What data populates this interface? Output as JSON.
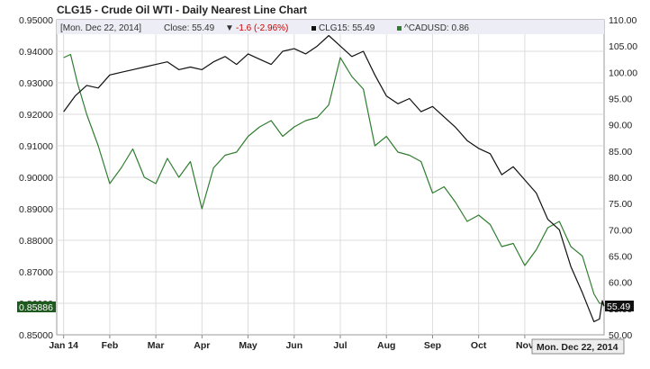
{
  "chart_data": {
    "type": "line",
    "title": "CLG15 - Crude Oil WTI - Daily Nearest Line Chart",
    "info_bar": {
      "date": "[Mon. Dec 22, 2014]",
      "close_label": "Close: 55.49",
      "change": "-1.6 (-2.96%)",
      "change_arrow": "▼",
      "series1_label": "CLG15: 55.49",
      "series2_label": "^CADUSD: 0.86"
    },
    "left_axis": {
      "ylim": [
        0.85,
        0.95
      ],
      "tick_labels": [
        "0.95000",
        "0.94000",
        "0.93000",
        "0.92000",
        "0.91000",
        "0.90000",
        "0.89000",
        "0.88000",
        "0.87000",
        "0.86000",
        "0.85000"
      ],
      "ticks": [
        0.95,
        0.94,
        0.93,
        0.92,
        0.91,
        0.9,
        0.89,
        0.88,
        0.87,
        0.86,
        0.85
      ],
      "last_value_label": "0.85886",
      "last_value": 0.85886
    },
    "right_axis": {
      "ylim": [
        50,
        110
      ],
      "tick_labels": [
        "110.00",
        "105.00",
        "100.00",
        "95.00",
        "90.00",
        "85.00",
        "80.00",
        "75.00",
        "70.00",
        "65.00",
        "60.00",
        "55.00",
        "50.00"
      ],
      "ticks": [
        110,
        105,
        100,
        95,
        90,
        85,
        80,
        75,
        70,
        65,
        60,
        55,
        50
      ],
      "last_value_label": "55.49",
      "last_value": 55.49
    },
    "x_axis": {
      "tick_labels": [
        "Jan 14",
        "Feb",
        "Mar",
        "Apr",
        "May",
        "Jun",
        "Jul",
        "Aug",
        "Sep",
        "Oct",
        "Nov"
      ],
      "tick_months": [
        0,
        1,
        2,
        3,
        4,
        5,
        6,
        7,
        8,
        9,
        10
      ],
      "xlim_months": [
        -0.15,
        11.72
      ],
      "cursor_label": "Mon. Dec 22, 2014"
    },
    "series": [
      {
        "name": "CLG15",
        "axis": "right",
        "color": "#111111",
        "x_months": [
          0,
          0.25,
          0.5,
          0.75,
          1,
          1.25,
          1.5,
          1.75,
          2,
          2.25,
          2.5,
          2.75,
          3,
          3.25,
          3.5,
          3.75,
          4,
          4.25,
          4.5,
          4.75,
          5,
          5.25,
          5.5,
          5.75,
          6,
          6.25,
          6.5,
          6.75,
          7,
          7.25,
          7.5,
          7.75,
          8,
          8.25,
          8.5,
          8.75,
          9,
          9.25,
          9.5,
          9.75,
          10,
          10.25,
          10.5,
          10.75,
          11,
          11.25,
          11.5,
          11.62,
          11.68,
          11.72
        ],
        "values": [
          92.5,
          95.5,
          97.5,
          97,
          99.5,
          100,
          100.5,
          101,
          101.5,
          102,
          100.5,
          101,
          100.5,
          102,
          103,
          101.5,
          103.5,
          102.5,
          101.5,
          104,
          104.5,
          103.5,
          105,
          107,
          105,
          103,
          104,
          99.5,
          95.5,
          94,
          95,
          92.5,
          93.5,
          91.5,
          89.5,
          87,
          85.5,
          84.5,
          80.5,
          82,
          79.5,
          77,
          72,
          70,
          63,
          58,
          52.5,
          53,
          56.5,
          55.5
        ]
      },
      {
        "name": "^CADUSD",
        "axis": "left",
        "color": "#2f7d2f",
        "x_months": [
          0,
          0.15,
          0.3,
          0.5,
          0.75,
          1,
          1.25,
          1.5,
          1.75,
          2,
          2.25,
          2.5,
          2.75,
          3,
          3.25,
          3.5,
          3.75,
          4,
          4.25,
          4.5,
          4.75,
          5,
          5.25,
          5.5,
          5.75,
          6,
          6.25,
          6.5,
          6.75,
          7,
          7.25,
          7.5,
          7.75,
          8,
          8.25,
          8.5,
          8.75,
          9,
          9.25,
          9.5,
          9.75,
          10,
          10.25,
          10.5,
          10.75,
          11,
          11.25,
          11.5,
          11.62,
          11.68,
          11.72
        ],
        "values": [
          0.938,
          0.939,
          0.93,
          0.92,
          0.91,
          0.898,
          0.903,
          0.909,
          0.9,
          0.898,
          0.906,
          0.9,
          0.905,
          0.89,
          0.903,
          0.907,
          0.908,
          0.913,
          0.916,
          0.918,
          0.913,
          0.916,
          0.918,
          0.919,
          0.923,
          0.938,
          0.932,
          0.928,
          0.91,
          0.913,
          0.908,
          0.907,
          0.905,
          0.895,
          0.897,
          0.892,
          0.886,
          0.888,
          0.885,
          0.878,
          0.879,
          0.872,
          0.877,
          0.884,
          0.886,
          0.878,
          0.875,
          0.863,
          0.86,
          0.86,
          0.859
        ]
      }
    ],
    "grid": true
  }
}
